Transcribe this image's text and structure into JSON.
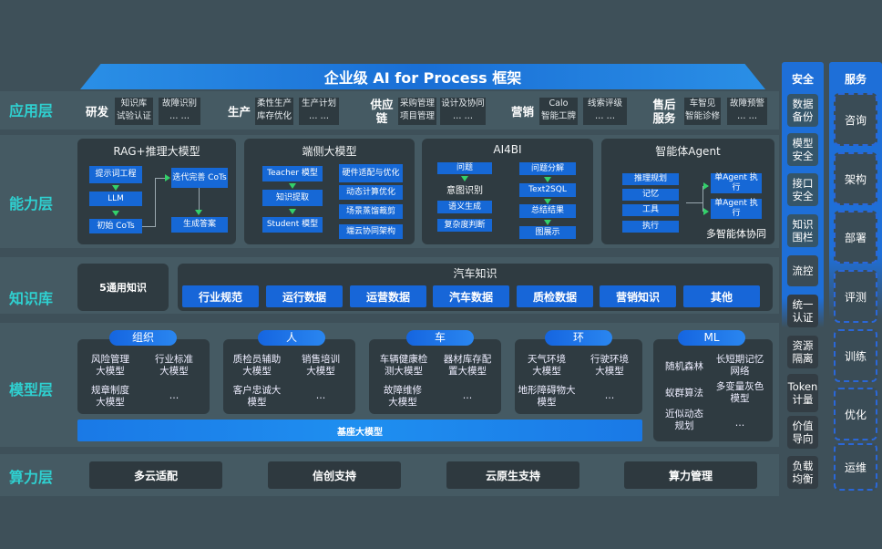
{
  "title": "企业级 AI for Process 框架",
  "layers": {
    "app": "应用层",
    "capability": "能力层",
    "knowledge": "知识库",
    "model": "模型层",
    "compute": "算力层"
  },
  "app_groups": [
    {
      "name": "研发",
      "items": [
        "知识库",
        "试验认证",
        "故障识别",
        "… …"
      ]
    },
    {
      "name": "生产",
      "items": [
        "柔性生产",
        "库存优化",
        "生产计划",
        "… …"
      ]
    },
    {
      "name": "供应链",
      "items": [
        "采购管理",
        "项目管理",
        "设计及协同",
        "… …"
      ]
    },
    {
      "name": "营销",
      "items": [
        "Calo",
        "智能工牌",
        "线索评级",
        "… …"
      ]
    },
    {
      "name": "售后服务",
      "items": [
        "车智见",
        "智能诊修",
        "故障预警",
        "… …"
      ]
    }
  ],
  "capabilities": {
    "rag": {
      "title": "RAG+推理大模型",
      "boxes": [
        "提示词工程",
        "LLM",
        "初始 CoTs",
        "迭代完善 CoTs",
        "生成答案"
      ]
    },
    "edge": {
      "title": "端侧大模型",
      "left": [
        "Teacher 模型",
        "知识提取",
        "Student 模型"
      ],
      "right": [
        "硬件适配与优化",
        "动态计算优化",
        "场景蒸馏裁剪",
        "端云协同架构"
      ]
    },
    "ai4bi": {
      "title": "AI4BI",
      "left": [
        "问题",
        "意图识别",
        "语义生成",
        "复杂度判断"
      ],
      "right": [
        "问题分解",
        "Text2SQL",
        "总结结果",
        "图展示"
      ]
    },
    "agent": {
      "title": "智能体Agent",
      "left": [
        "推理规划",
        "记忆",
        "工具",
        "执行"
      ],
      "right": [
        "单Agent 执行",
        "单Agent 执行"
      ],
      "footer": "多智能体协同"
    }
  },
  "knowledge": {
    "general": "5通用知识",
    "auto_title": "汽车知识",
    "auto_items": [
      "行业规范",
      "运行数据",
      "运营数据",
      "汽车数据",
      "质检数据",
      "营销知识",
      "其他"
    ]
  },
  "models": [
    {
      "name": "组织",
      "items": [
        "风险管理大模型",
        "行业标准大模型",
        "规章制度大模型",
        "…"
      ]
    },
    {
      "name": "人",
      "items": [
        "质检员辅助大模型",
        "销售培训大模型",
        "客户忠诚大模型",
        "…"
      ]
    },
    {
      "name": "车",
      "items": [
        "车辆健康检测大模型",
        "器材库存配置大模型",
        "故障维修大模型",
        "…"
      ]
    },
    {
      "name": "环",
      "items": [
        "天气环境大模型",
        "行驶环境大模型",
        "地形障碍物大模型",
        "…"
      ]
    },
    {
      "name": "ML",
      "items": [
        "随机森林",
        "长短期记忆网络",
        "蚁群算法",
        "多变量灰色模型",
        "近似动态规划",
        "…"
      ]
    }
  ],
  "base_model": "基座大模型",
  "compute": [
    "多云适配",
    "信创支持",
    "云原生支持",
    "算力管理"
  ],
  "security": {
    "title": "安全",
    "items": [
      "数据备份",
      "模型安全",
      "接口安全",
      "知识围栏",
      "流控",
      "统一认证",
      "资源隔离",
      "Token计量",
      "价值导向",
      "负载均衡"
    ]
  },
  "services": {
    "title": "服务",
    "items": [
      "咨询",
      "架构",
      "部署",
      "评测",
      "训练",
      "优化",
      "运维"
    ]
  },
  "colors": {
    "background": "#3e5059",
    "accent_blue": "#1668d6",
    "layer_label": "#2fd0d0",
    "arrow": "#33d06a"
  }
}
